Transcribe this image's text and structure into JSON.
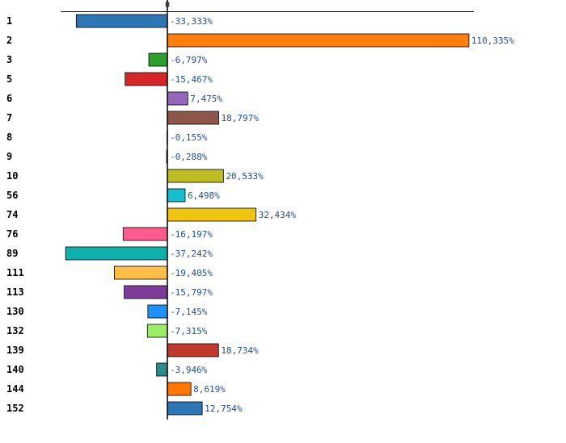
{
  "chart_data": {
    "type": "bar",
    "orientation": "horizontal",
    "title": "",
    "xlabel": "",
    "ylabel": "",
    "zero_tick_label": "0",
    "xlim": [
      -47,
      130
    ],
    "categories": [
      "1",
      "2",
      "3",
      "5",
      "6",
      "7",
      "8",
      "9",
      "10",
      "56",
      "74",
      "76",
      "89",
      "111",
      "113",
      "130",
      "132",
      "139",
      "140",
      "144",
      "152"
    ],
    "values": [
      -33.333,
      110.335,
      -6.797,
      -15.467,
      7.475,
      18.797,
      -0.155,
      -0.288,
      20.533,
      6.498,
      32.434,
      -16.197,
      -37.242,
      -19.405,
      -15.797,
      -7.145,
      -7.315,
      18.734,
      -3.946,
      8.619,
      12.754
    ],
    "value_labels": [
      "-33,333%",
      "110,335%",
      "-6,797%",
      "-15,467%",
      "7,475%",
      "18,797%",
      "-0,155%",
      "-0,288%",
      "20,533%",
      "6,498%",
      "32,434%",
      "-16,197%",
      "-37,242%",
      "-19,405%",
      "-15,797%",
      "-7,145%",
      "-7,315%",
      "18,734%",
      "-3,946%",
      "8,619%",
      "12,754%"
    ],
    "colors": [
      "#2e75b6",
      "#ff7f0e",
      "#2ca02c",
      "#d62728",
      "#9467bd",
      "#8c564b",
      "#e377c2",
      "#7f7f7f",
      "#bcbd22",
      "#17becf",
      "#f1c40f",
      "#ff5b8f",
      "#10b0ad",
      "#ffbf47",
      "#7d3c98",
      "#1e90ff",
      "#99ee66",
      "#c0392b",
      "#2e8b8b",
      "#ff7700",
      "#2e75b6"
    ],
    "grid": false,
    "legend": "none"
  }
}
